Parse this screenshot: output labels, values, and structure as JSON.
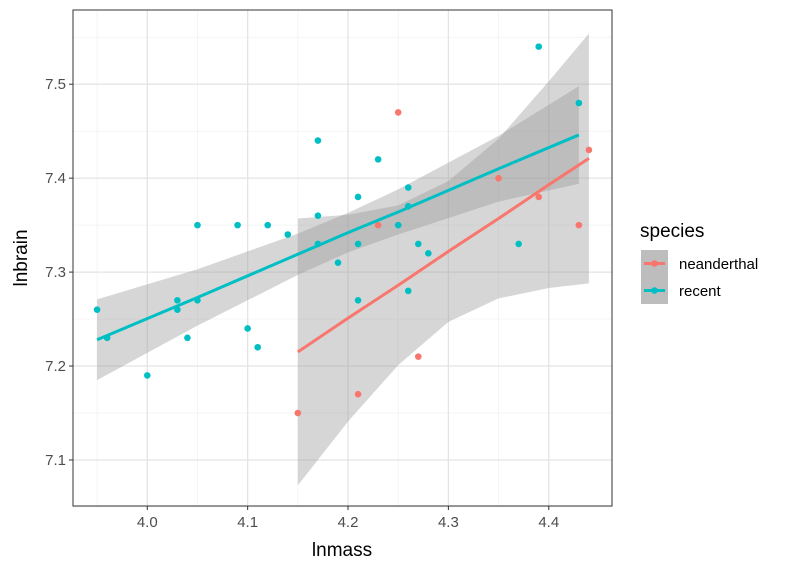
{
  "chart_data": {
    "type": "scatter",
    "xlabel": "lnmass",
    "ylabel": "lnbrain",
    "xlim": [
      3.926,
      4.463
    ],
    "ylim": [
      7.051,
      7.579
    ],
    "xticks": [
      4.0,
      4.1,
      4.2,
      4.3,
      4.4
    ],
    "xtick_labels": [
      "4.0",
      "4.1",
      "4.2",
      "4.3",
      "4.4"
    ],
    "yticks": [
      7.1,
      7.2,
      7.3,
      7.4,
      7.5
    ],
    "ytick_labels": [
      "7.1",
      "7.2",
      "7.3",
      "7.4",
      "7.5"
    ],
    "grid": true,
    "legend": {
      "title": "species",
      "position": "right"
    },
    "series": [
      {
        "name": "neanderthal",
        "color": "#F8766D",
        "points": [
          [
            4.15,
            7.15
          ],
          [
            4.21,
            7.17
          ],
          [
            4.23,
            7.35
          ],
          [
            4.25,
            7.47
          ],
          [
            4.27,
            7.21
          ],
          [
            4.35,
            7.4
          ],
          [
            4.39,
            7.38
          ],
          [
            4.43,
            7.35
          ],
          [
            4.44,
            7.43
          ]
        ],
        "fit": {
          "x": [
            4.15,
            4.2,
            4.25,
            4.3,
            4.35,
            4.4,
            4.44
          ],
          "y": [
            7.215,
            7.251,
            7.286,
            7.322,
            7.357,
            7.393,
            7.421
          ],
          "lower": [
            7.073,
            7.141,
            7.201,
            7.247,
            7.272,
            7.283,
            7.288
          ],
          "upper": [
            7.357,
            7.361,
            7.371,
            7.397,
            7.442,
            7.503,
            7.554
          ]
        }
      },
      {
        "name": "recent",
        "color": "#00BFC4",
        "points": [
          [
            3.95,
            7.26
          ],
          [
            3.96,
            7.23
          ],
          [
            4.0,
            7.19
          ],
          [
            4.03,
            7.27
          ],
          [
            4.03,
            7.26
          ],
          [
            4.04,
            7.23
          ],
          [
            4.05,
            7.27
          ],
          [
            4.05,
            7.35
          ],
          [
            4.09,
            7.35
          ],
          [
            4.1,
            7.24
          ],
          [
            4.11,
            7.22
          ],
          [
            4.12,
            7.35
          ],
          [
            4.14,
            7.34
          ],
          [
            4.17,
            7.44
          ],
          [
            4.17,
            7.36
          ],
          [
            4.17,
            7.33
          ],
          [
            4.19,
            7.31
          ],
          [
            4.21,
            7.38
          ],
          [
            4.21,
            7.33
          ],
          [
            4.21,
            7.27
          ],
          [
            4.23,
            7.42
          ],
          [
            4.25,
            7.35
          ],
          [
            4.26,
            7.39
          ],
          [
            4.26,
            7.37
          ],
          [
            4.26,
            7.28
          ],
          [
            4.27,
            7.33
          ],
          [
            4.28,
            7.32
          ],
          [
            4.37,
            7.33
          ],
          [
            4.39,
            7.54
          ],
          [
            4.43,
            7.48
          ]
        ],
        "fit": {
          "x": [
            3.95,
            4.05,
            4.15,
            4.2,
            4.25,
            4.35,
            4.43
          ],
          "y": [
            7.228,
            7.273,
            7.319,
            7.342,
            7.364,
            7.41,
            7.446
          ],
          "lower": [
            7.185,
            7.243,
            7.297,
            7.321,
            7.34,
            7.375,
            7.394
          ],
          "upper": [
            7.271,
            7.303,
            7.341,
            7.363,
            7.388,
            7.445,
            7.498
          ]
        }
      }
    ]
  }
}
